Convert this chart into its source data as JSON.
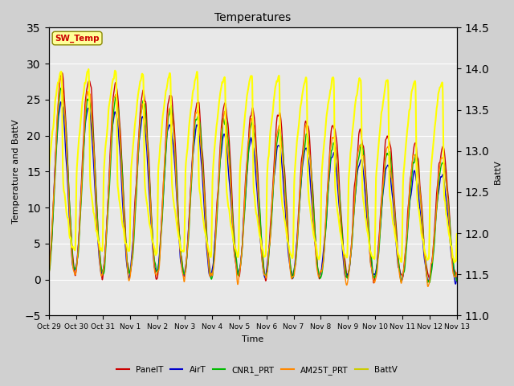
{
  "title": "Temperatures",
  "xlabel": "Time",
  "ylabel_left": "Temperature and BattV",
  "ylabel_right": "BattV",
  "ylim_left": [
    -5,
    35
  ],
  "ylim_right": [
    11.0,
    14.5
  ],
  "yticks_left": [
    -5,
    0,
    5,
    10,
    15,
    20,
    25,
    30,
    35
  ],
  "yticks_right": [
    11.0,
    11.5,
    12.0,
    12.5,
    13.0,
    13.5,
    14.0,
    14.5
  ],
  "annotation_text": "SW_Temp",
  "annotation_color": "#cc0000",
  "annotation_bg": "#ffff99",
  "annotation_edge": "#888800",
  "fig_bg_color": "#d0d0d0",
  "plot_bg_color": "#e8e8e8",
  "legend_entries": [
    "PanelT",
    "AirT",
    "CNR1_PRT",
    "AM25T_PRT",
    "BattV"
  ],
  "legend_colors": [
    "#cc0000",
    "#0000cc",
    "#00bb00",
    "#ff8800",
    "#cccc00"
  ],
  "line_colors": [
    "#cc0000",
    "#0000cc",
    "#00bb00",
    "#ff8800",
    "#ffff00"
  ],
  "line_widths": [
    1.0,
    1.0,
    1.0,
    1.0,
    1.5
  ],
  "x_tick_labels": [
    "Oct 29",
    "Oct 30",
    "Oct 31",
    "Nov 1",
    "Nov 2",
    "Nov 3",
    "Nov 4",
    "Nov 5",
    "Nov 6",
    "Nov 7",
    "Nov 8",
    "Nov 9",
    "Nov 10",
    "Nov 11",
    "Nov 12",
    "Nov 13"
  ],
  "num_points": 2000,
  "seed": 42
}
